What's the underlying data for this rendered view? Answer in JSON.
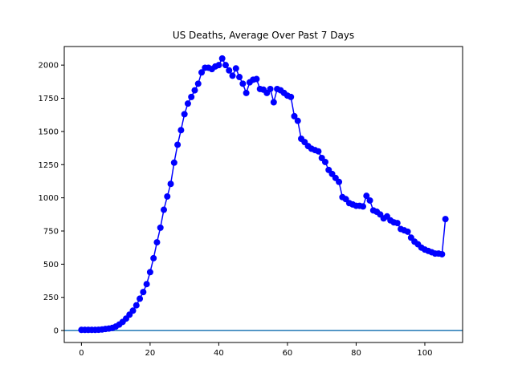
{
  "chart_data": {
    "type": "line",
    "title": "US Deaths, Average Over Past 7 Days",
    "xlabel": "",
    "ylabel": "",
    "xlim": [
      -5,
      111
    ],
    "ylim": [
      -90,
      2140
    ],
    "x_ticks": [
      0,
      20,
      40,
      60,
      80,
      100
    ],
    "y_ticks": [
      0,
      250,
      500,
      750,
      1000,
      1250,
      1500,
      1750,
      2000
    ],
    "grid": false,
    "legend": "none",
    "series_color": "#0000ff",
    "baseline": {
      "y": 0,
      "color": "#1f77b4"
    },
    "x": [
      0,
      1,
      2,
      3,
      4,
      5,
      6,
      7,
      8,
      9,
      10,
      11,
      12,
      13,
      14,
      15,
      16,
      17,
      18,
      19,
      20,
      21,
      22,
      23,
      24,
      25,
      26,
      27,
      28,
      29,
      30,
      31,
      32,
      33,
      34,
      35,
      36,
      37,
      38,
      39,
      40,
      41,
      42,
      43,
      44,
      45,
      46,
      47,
      48,
      49,
      50,
      51,
      52,
      53,
      54,
      55,
      56,
      57,
      58,
      59,
      60,
      61,
      62,
      63,
      64,
      65,
      66,
      67,
      68,
      69,
      70,
      71,
      72,
      73,
      74,
      75,
      76,
      77,
      78,
      79,
      80,
      81,
      82,
      83,
      84,
      85,
      86,
      87,
      88,
      89,
      90,
      91,
      92,
      93,
      94,
      95,
      96,
      97,
      98,
      99,
      100,
      101,
      102,
      103,
      104,
      105,
      106
    ],
    "y": [
      5,
      5,
      5,
      5,
      5,
      6,
      8,
      12,
      15,
      20,
      30,
      45,
      65,
      90,
      120,
      150,
      190,
      240,
      290,
      350,
      440,
      545,
      665,
      775,
      910,
      1010,
      1105,
      1265,
      1400,
      1510,
      1630,
      1710,
      1760,
      1810,
      1860,
      1945,
      1980,
      1980,
      1970,
      1990,
      2000,
      2050,
      2000,
      1960,
      1920,
      1975,
      1910,
      1860,
      1790,
      1870,
      1890,
      1895,
      1820,
      1815,
      1790,
      1820,
      1720,
      1820,
      1810,
      1790,
      1770,
      1760,
      1615,
      1580,
      1445,
      1420,
      1390,
      1370,
      1360,
      1350,
      1300,
      1270,
      1210,
      1180,
      1150,
      1120,
      1005,
      990,
      960,
      950,
      940,
      940,
      935,
      1015,
      980,
      905,
      895,
      875,
      845,
      860,
      830,
      815,
      810,
      765,
      755,
      745,
      700,
      670,
      650,
      625,
      610,
      600,
      590,
      580,
      580,
      575,
      840
    ]
  }
}
